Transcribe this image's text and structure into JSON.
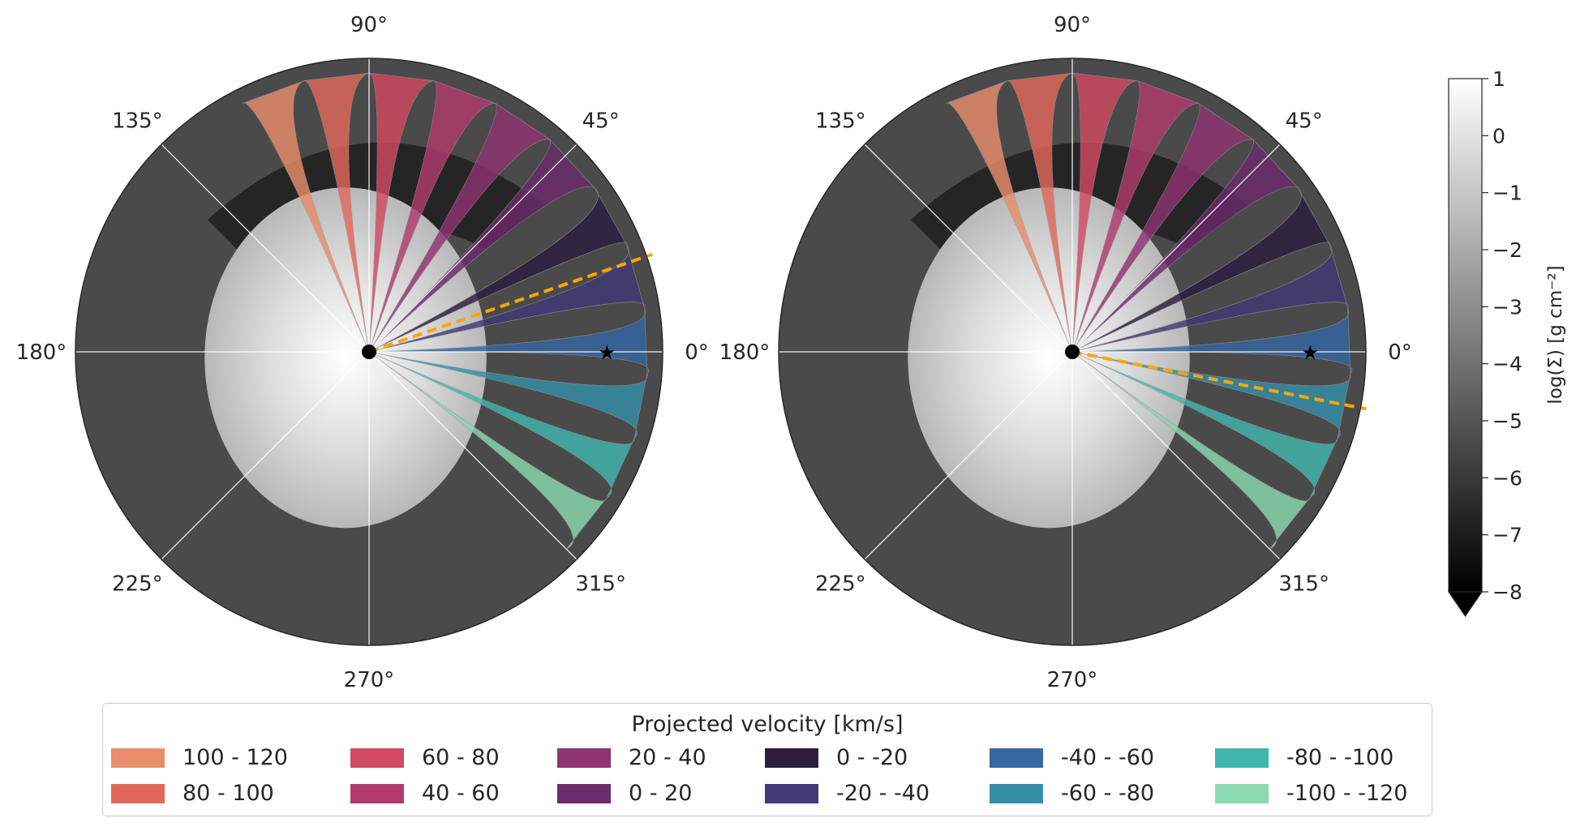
{
  "panels": [
    {
      "name": "left",
      "angle_labels": [
        "90°",
        "45°",
        "0°",
        "315°",
        "270°",
        "225°",
        "180°",
        "135°"
      ],
      "dashed_line_angle_deg": 19,
      "star_azimuth_deg": 0
    },
    {
      "name": "right",
      "angle_labels": [
        "90°",
        "45°",
        "0°",
        "315°",
        "270°",
        "225°",
        "180°",
        "135°"
      ],
      "dashed_line_angle_deg": -11,
      "star_azimuth_deg": 0
    }
  ],
  "colorbar": {
    "label": "log(Σ) [g cm⁻²]",
    "ticks": [
      "1",
      "0",
      "−1",
      "−2",
      "−3",
      "−4",
      "−5",
      "−6",
      "−7",
      "−8"
    ],
    "vmin": -8,
    "vmax": 1,
    "colormap": "greys (black to white)",
    "extend": "min"
  },
  "legend": {
    "title": "Projected velocity [km/s]",
    "items": [
      {
        "label": "100 - 120",
        "color": "#e98d6b"
      },
      {
        "label": "80 - 100",
        "color": "#e3685c"
      },
      {
        "label": "60 - 80",
        "color": "#d14a61"
      },
      {
        "label": "40 - 60",
        "color": "#b13c6c"
      },
      {
        "label": "20 - 40",
        "color": "#8f3371"
      },
      {
        "label": "0 - 20",
        "color": "#6c2b6d"
      },
      {
        "label": "0 - -20",
        "color": "#2b1e3e"
      },
      {
        "label": "-20 - -40",
        "color": "#403a75"
      },
      {
        "label": "-40 - -60",
        "color": "#3567a1"
      },
      {
        "label": "-60 - -80",
        "color": "#348fa7"
      },
      {
        "label": "-80 - -100",
        "color": "#40b7ad"
      },
      {
        "label": "-100 - -120",
        "color": "#8ad9b1"
      }
    ]
  },
  "chart_data": {
    "type": "polar contour map",
    "panels": 2,
    "colorbar_range": [
      -8,
      1
    ],
    "velocity_bins_kms": [
      120,
      100,
      80,
      60,
      40,
      20,
      0,
      -20,
      -40,
      -60,
      -80,
      -100,
      -120
    ]
  }
}
